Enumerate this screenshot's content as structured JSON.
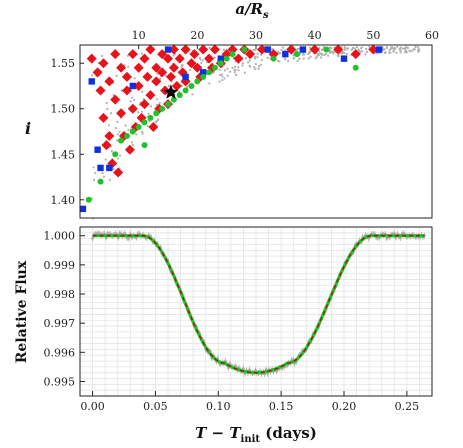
{
  "chart_data": [
    {
      "type": "scatter",
      "xlabel_main": "a/R",
      "xlabel_sub": "s",
      "ylabel": "i",
      "xlim": [
        0,
        60
      ],
      "ylim": [
        1.38,
        1.57
      ],
      "xticks": [
        "10",
        "20",
        "30",
        "40",
        "50",
        "60"
      ],
      "yticks": [
        "1.40",
        "1.45",
        "1.50",
        "1.55"
      ],
      "grid": false,
      "colors": {
        "gray": "#b0b0b0",
        "red": "#e8121a",
        "blue": "#1030e0",
        "green": "#22c02a",
        "star": "#000000"
      },
      "series": [
        {
          "marker": "diamond",
          "color": "red",
          "points": [
            [
              2,
              1.555
            ],
            [
              3,
              1.54
            ],
            [
              3.5,
              1.52
            ],
            [
              4,
              1.55
            ],
            [
              4,
              1.49
            ],
            [
              4.5,
              1.46
            ],
            [
              5,
              1.53
            ],
            [
              5,
              1.47
            ],
            [
              5.5,
              1.44
            ],
            [
              6,
              1.56
            ],
            [
              6,
              1.51
            ],
            [
              6.5,
              1.43
            ],
            [
              7,
              1.545
            ],
            [
              7,
              1.495
            ],
            [
              7.5,
              1.47
            ],
            [
              8,
              1.535
            ],
            [
              8,
              1.52
            ],
            [
              8.5,
              1.455
            ],
            [
              9,
              1.56
            ],
            [
              9,
              1.5
            ],
            [
              9.5,
              1.48
            ],
            [
              10,
              1.545
            ],
            [
              10,
              1.525
            ],
            [
              10.5,
              1.49
            ],
            [
              11,
              1.555
            ],
            [
              11,
              1.505
            ],
            [
              11.5,
              1.535
            ],
            [
              12,
              1.565
            ],
            [
              12,
              1.515
            ],
            [
              12.5,
              1.48
            ],
            [
              13,
              1.545
            ],
            [
              13,
              1.53
            ],
            [
              13.5,
              1.5
            ],
            [
              14,
              1.56
            ],
            [
              14,
              1.54
            ],
            [
              14.5,
              1.52
            ],
            [
              15,
              1.555
            ],
            [
              15,
              1.505
            ],
            [
              15.5,
              1.535
            ],
            [
              16,
              1.565
            ],
            [
              16,
              1.545
            ],
            [
              16.5,
              1.525
            ],
            [
              17,
              1.555
            ],
            [
              17.5,
              1.54
            ],
            [
              18,
              1.565
            ],
            [
              18,
              1.53
            ],
            [
              19,
              1.55
            ],
            [
              19.5,
              1.56
            ],
            [
              20,
              1.545
            ],
            [
              20.5,
              1.535
            ],
            [
              21,
              1.565
            ],
            [
              22,
              1.555
            ],
            [
              22.5,
              1.545
            ],
            [
              23,
              1.565
            ],
            [
              24,
              1.55
            ],
            [
              25,
              1.56
            ],
            [
              26,
              1.565
            ],
            [
              27,
              1.555
            ],
            [
              28,
              1.565
            ],
            [
              29,
              1.56
            ],
            [
              31,
              1.565
            ],
            [
              33,
              1.56
            ],
            [
              36,
              1.565
            ],
            [
              40,
              1.565
            ],
            [
              44,
              1.565
            ],
            [
              47,
              1.56
            ],
            [
              50,
              1.565
            ]
          ]
        },
        {
          "marker": "square",
          "color": "blue",
          "points": [
            [
              0.5,
              1.39
            ],
            [
              2,
              1.53
            ],
            [
              3,
              1.455
            ],
            [
              3.5,
              1.435
            ],
            [
              5,
              1.435
            ],
            [
              9,
              1.525
            ],
            [
              15,
              1.565
            ],
            [
              18,
              1.535
            ],
            [
              21,
              1.54
            ],
            [
              24,
              1.555
            ],
            [
              32,
              1.565
            ],
            [
              35,
              1.56
            ],
            [
              38,
              1.565
            ],
            [
              45,
              1.555
            ],
            [
              51,
              1.565
            ]
          ]
        },
        {
          "marker": "circle",
          "color": "green",
          "points": [
            [
              1.5,
              1.4
            ],
            [
              3.5,
              1.42
            ],
            [
              6,
              1.45
            ],
            [
              7,
              1.465
            ],
            [
              8,
              1.47
            ],
            [
              9,
              1.475
            ],
            [
              10,
              1.48
            ],
            [
              11,
              1.485
            ],
            [
              11,
              1.46
            ],
            [
              12,
              1.49
            ],
            [
              13,
              1.495
            ],
            [
              14,
              1.5
            ],
            [
              15,
              1.505
            ],
            [
              16,
              1.51
            ],
            [
              17,
              1.515
            ],
            [
              18,
              1.52
            ],
            [
              19,
              1.525
            ],
            [
              20,
              1.53
            ],
            [
              21,
              1.535
            ],
            [
              22,
              1.54
            ],
            [
              23,
              1.545
            ],
            [
              24,
              1.55
            ],
            [
              25,
              1.555
            ],
            [
              26,
              1.56
            ],
            [
              28,
              1.565
            ],
            [
              33,
              1.555
            ],
            [
              37,
              1.56
            ],
            [
              42,
              1.565
            ],
            [
              47,
              1.545
            ]
          ]
        },
        {
          "marker": "star",
          "color": "star",
          "points": [
            [
              15.5,
              1.518
            ]
          ]
        }
      ]
    },
    {
      "type": "line",
      "xlabel": "T − T",
      "xlabel_sub": "init",
      "xlabel_unit": "(days)",
      "ylabel": "Relative Flux",
      "xlim": [
        -0.01,
        0.27
      ],
      "ylim": [
        0.9945,
        1.0003
      ],
      "xticks": [
        "0.00",
        "0.05",
        "0.10",
        "0.15",
        "0.20",
        "0.25"
      ],
      "yticks": [
        "0.995",
        "0.996",
        "0.997",
        "0.998",
        "0.999",
        "1.000"
      ],
      "grid": true,
      "colors": {
        "data": "#a8a8a8",
        "model": "#22c02a",
        "fit": "#b01010"
      },
      "transit": {
        "depth": 0.0047,
        "ingress_start": 0.04,
        "ingress_end": 0.105,
        "egress_start": 0.155,
        "egress_end": 0.222
      }
    }
  ]
}
